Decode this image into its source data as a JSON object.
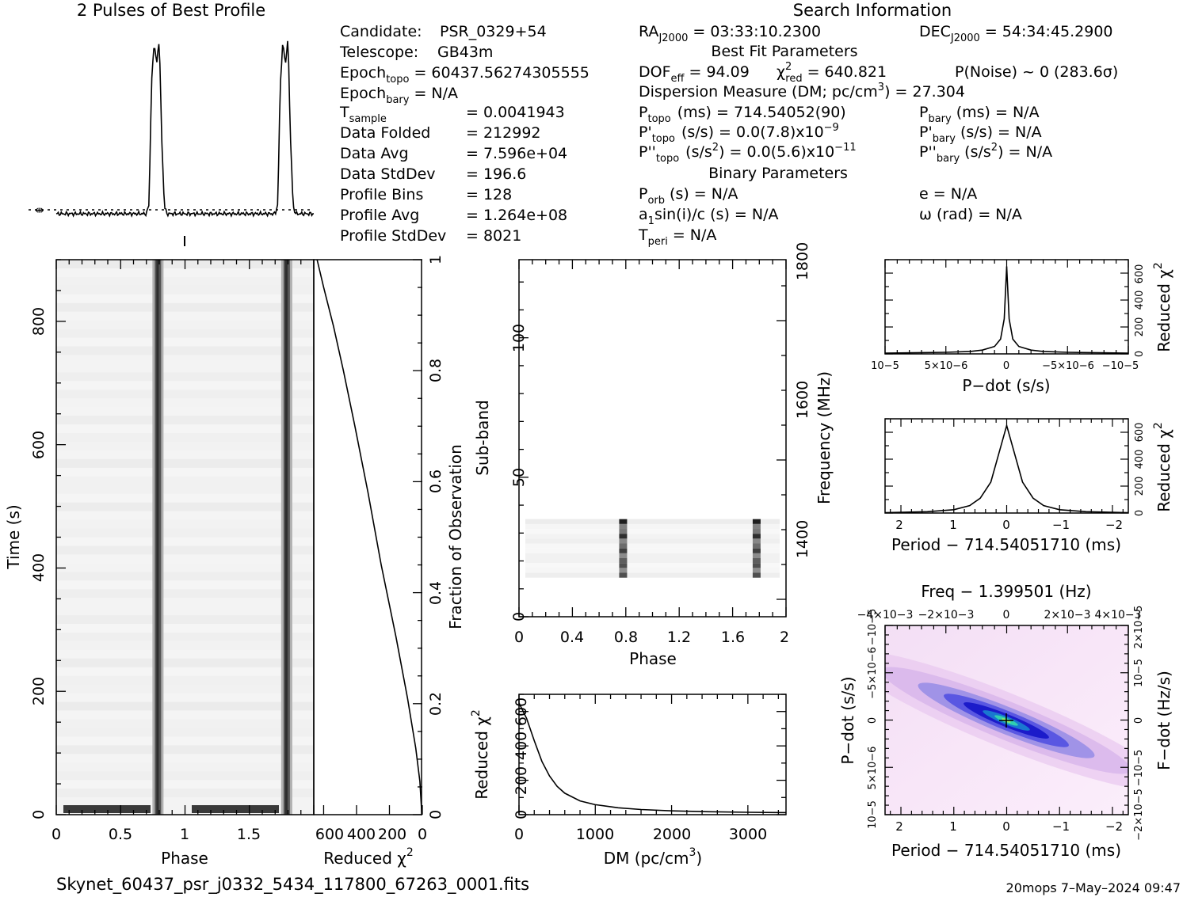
{
  "profile_title": "2 Pulses of Best Profile",
  "search_title": "Search Information",
  "footer": {
    "filename": "Skynet_60437_psr_j0332_5434_117800_67263_0001.fits",
    "stamp": "20mops   7–May–2024 09:47"
  },
  "info": {
    "candidate_label": "Candidate:",
    "candidate": "PSR_0329+54",
    "telescope_label": "Telescope:",
    "telescope": "GB43m",
    "epoch_topo_label": "Epoch",
    "epoch_topo_sub": "topo",
    "epoch_topo": "= 60437.56274305555",
    "epoch_bary_label": "Epoch",
    "epoch_bary_sub": "bary",
    "epoch_bary": "= N/A",
    "tsample_label": "T",
    "tsample_sub": "sample",
    "tsample": "=  0.0041943",
    "folded_label": "Data Folded",
    "folded": "=  212992",
    "davg_label": "Data Avg",
    "davg": "=  7.596e+04",
    "dstd_label": "Data StdDev",
    "dstd": "=  196.6",
    "pbins_label": "Profile Bins",
    "pbins": "=  128",
    "pavg_label": "Profile Avg",
    "pavg": "=  1.264e+08",
    "pstd_label": "Profile StdDev",
    "pstd": "=  8021",
    "ra_label": "RA",
    "ra_sub": "J2000",
    "ra": "= 03:33:10.2300",
    "dec_label": "DEC",
    "dec_sub": "J2000",
    "dec": "= 54:34:45.2900",
    "best_fit": "Best Fit Parameters",
    "dof_label": "DOF",
    "dof_sub": "eff",
    "dof": "= 94.09",
    "chi_label": "χ",
    "chi_sup": "2",
    "chi_sub": "red",
    "chi": "= 640.821",
    "pnoise": "P(Noise) ~ 0",
    "sigma": "(283.6σ)",
    "dm_line": "Dispersion Measure (DM; pc/cm",
    "dm_sup": "3",
    "dm_val": ") = 27.304",
    "ptopo_label": "P",
    "ptopo_sub": "topo",
    "ptopo": "(ms) =  714.54052(90)",
    "pbary_label": "P",
    "pbary_sub": "bary",
    "pbary": "(ms) = N/A",
    "pdtopo_label": "P'",
    "pdtopo_sub": "topo",
    "pdtopo": "(s/s) = 0.0(7.8)x10",
    "pdtopo_exp": "−9",
    "pdbary_label": "P'",
    "pdbary_sub": "bary",
    "pdbary": "(s/s) = N/A",
    "pddtopo_label": "P''",
    "pddtopo_sub": "topo",
    "pddtopo": "(s/s",
    "pddtopo_sup": "2",
    "pddtopo_b": ") = 0.0(5.6)x10",
    "pddtopo_exp": "−11",
    "pddbary_label": "P''",
    "pddbary_sub": "bary",
    "pddbary": "(s/s",
    "pddbary_sup": "2",
    "pddbary_b": ") = N/A",
    "binary": "Binary Parameters",
    "porb_label": "P",
    "porb_sub": "orb",
    "porb": "(s) = N/A",
    "e_line": "e = N/A",
    "a1_label": "a",
    "a1_sub": "1",
    "a1": "sin(i)/c (s) = N/A",
    "omega_line": "ω (rad) = N/A",
    "tperi_label": "T",
    "tperi_sub": "peri",
    "tperi": "= N/A"
  },
  "chart_data": [
    {
      "id": "profile",
      "type": "line",
      "title": "2 Pulses of Best Profile",
      "x": [
        0.0,
        0.7,
        0.72,
        0.74,
        0.76,
        0.78,
        0.8,
        0.82,
        0.84,
        0.86,
        1.0,
        1.7,
        1.72,
        1.74,
        1.76,
        1.78,
        1.8,
        1.82,
        1.84,
        1.86,
        2.0
      ],
      "values": [
        0.0,
        0.0,
        0.05,
        0.72,
        0.95,
        0.83,
        0.97,
        0.4,
        0.04,
        0.0,
        0.0,
        0.0,
        0.05,
        0.72,
        0.95,
        0.83,
        0.97,
        0.4,
        0.04,
        0.0,
        0.0
      ],
      "xlim": [
        0,
        2
      ]
    },
    {
      "id": "time-phase",
      "type": "heatmap",
      "xlabel": "Phase",
      "ylabel": "Time (s)",
      "xlim": [
        0,
        2
      ],
      "ylim": [
        0,
        900
      ],
      "x_ticks": [
        "0",
        "0.5",
        "1",
        "1.5"
      ],
      "y_ticks": [
        "0",
        "200",
        "400",
        "600",
        "800"
      ],
      "pulse_phases": [
        0.79,
        1.79
      ]
    },
    {
      "id": "time-chi2",
      "type": "line",
      "xlabel": "Reduced χ",
      "xlabel_sup": "2",
      "ylabel": "Fraction of Observation",
      "x_ticks": [
        "600",
        "400",
        "200",
        "0"
      ],
      "y_ticks": [
        "0",
        "0.2",
        "0.4",
        "0.6",
        "0.8",
        "1"
      ],
      "xlim": [
        660,
        0
      ],
      "ylim": [
        0,
        1
      ],
      "x": [
        640,
        600,
        540,
        480,
        410,
        330,
        250,
        160,
        90,
        40,
        15,
        3
      ],
      "y": [
        1.0,
        0.95,
        0.88,
        0.8,
        0.7,
        0.58,
        0.45,
        0.32,
        0.21,
        0.12,
        0.06,
        0.0
      ]
    },
    {
      "id": "subband",
      "type": "heatmap",
      "xlabel": "Phase",
      "ylabel": "Sub-band",
      "y2label": "Frequency (MHz)",
      "xlim": [
        0,
        2
      ],
      "ylim": [
        0,
        128
      ],
      "x_ticks": [
        "0",
        "0.4",
        "0.8",
        "1.2",
        "1.6",
        "2"
      ],
      "y_ticks": [
        "0",
        "50",
        "100"
      ],
      "y2_ticks": [
        "1400",
        "1600",
        "1800"
      ],
      "band": [
        14,
        35
      ],
      "pulse_phases": [
        0.78,
        1.78
      ]
    },
    {
      "id": "dm-chi2",
      "type": "line",
      "xlabel": "DM (pc/cm",
      "xlabel_sup": "3",
      "xlabel_end": ")",
      "ylabel": "Reduced χ",
      "ylabel_sup": "2",
      "x_ticks": [
        "0",
        "1000",
        "2000",
        "3000"
      ],
      "y_ticks": [
        "0",
        "200",
        "400",
        "600"
      ],
      "xlim": [
        0,
        3500
      ],
      "ylim": [
        0,
        700
      ],
      "x": [
        0,
        100,
        200,
        300,
        400,
        500,
        600,
        800,
        1000,
        1300,
        1600,
        2000,
        2500,
        3000,
        3500
      ],
      "y": [
        650,
        560,
        430,
        310,
        225,
        165,
        125,
        80,
        58,
        40,
        30,
        22,
        17,
        14,
        12
      ]
    },
    {
      "id": "pdot-chi2",
      "type": "line",
      "xlabel": "P−dot (s/s)",
      "ylabel": "Reduced χ",
      "ylabel_sup": "2",
      "x_ticks": [
        "10−5",
        "5×10−6",
        "0",
        "−5×10−6",
        "−10−5"
      ],
      "y_ticks": [
        "0",
        "200",
        "400",
        "600"
      ],
      "xlim": [
        1e-05,
        -1e-05
      ],
      "ylim": [
        0,
        700
      ],
      "x": [
        1e-05,
        5e-06,
        3e-06,
        2e-06,
        1e-06,
        5e-07,
        2e-07,
        0.0,
        -2e-07,
        -5e-07,
        -1e-06,
        -2e-06,
        -3e-06,
        -5e-06,
        -1e-05
      ],
      "y": [
        5,
        12,
        18,
        28,
        55,
        110,
        260,
        650,
        260,
        110,
        55,
        28,
        18,
        12,
        5
      ]
    },
    {
      "id": "period-chi2",
      "type": "line",
      "xlabel": "Period − 714.54051710 (ms)",
      "ylabel": "Reduced χ",
      "ylabel_sup": "2",
      "x_ticks": [
        "2",
        "1",
        "0",
        "−1",
        "−2"
      ],
      "y_ticks": [
        "0",
        "200",
        "400",
        "600"
      ],
      "xlim": [
        2.3,
        -2.3
      ],
      "ylim": [
        0,
        700
      ],
      "x": [
        2.3,
        1.5,
        1.0,
        0.7,
        0.5,
        0.3,
        0.15,
        0.0,
        -0.15,
        -0.3,
        -0.5,
        -0.7,
        -1.0,
        -1.5,
        -2.3
      ],
      "y": [
        3,
        10,
        25,
        55,
        110,
        230,
        440,
        650,
        440,
        230,
        110,
        55,
        25,
        10,
        3
      ]
    },
    {
      "id": "p-pdot",
      "type": "heatmap",
      "title": "Freq − 1.399501 (Hz)",
      "xlabel": "Period − 714.54051710 (ms)",
      "ylabel": "P−dot (s/s)",
      "y2label": "F−dot (Hz/s)",
      "x_ticks": [
        "2",
        "1",
        "0",
        "−1",
        "−2"
      ],
      "top_ticks": [
        "−4×10−3",
        "−2×10−3",
        "0",
        "2×10−3",
        "4×10−3"
      ],
      "y_ticks": [
        "10−5",
        "5×10−6",
        "0",
        "−5×10−6",
        "−10−5"
      ],
      "y2_ticks": [
        "−2×10−5",
        "−10−5",
        "0",
        "10−5",
        "2×10−5"
      ],
      "xlim": [
        2.3,
        -2.3
      ],
      "ylim": [
        1e-05,
        -1e-05
      ]
    }
  ]
}
